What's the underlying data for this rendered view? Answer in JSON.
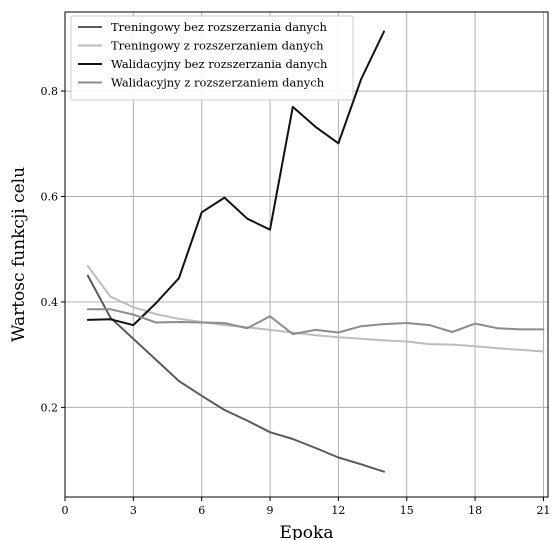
{
  "chart_data": {
    "type": "line",
    "xlabel": "Epoka",
    "ylabel": "Wartosc funkcji celu",
    "xlim": [
      0,
      21.2
    ],
    "ylim": [
      0.03,
      0.95
    ],
    "xticks": [
      0,
      3,
      6,
      9,
      12,
      15,
      18,
      21
    ],
    "yticks": [
      0.2,
      0.4,
      0.6,
      0.8
    ],
    "ytick_labels": [
      "0.2",
      "0.4",
      "0.6",
      "0.8"
    ],
    "grid": true,
    "legend_position": "top-left",
    "series": [
      {
        "name": "Treningowy bez rozszerzania danych",
        "color": "#5a5a5a",
        "x": [
          1,
          2,
          3,
          4,
          5,
          6,
          7,
          8,
          9,
          10,
          11,
          12,
          13,
          14
        ],
        "y": [
          0.45,
          0.37,
          0.33,
          0.29,
          0.25,
          0.222,
          0.195,
          0.175,
          0.153,
          0.14,
          0.123,
          0.105,
          0.092,
          0.078
        ]
      },
      {
        "name": "Treningowy z rozszerzaniem danych",
        "color": "#bdbdbd",
        "x": [
          1,
          2,
          3,
          4,
          5,
          6,
          7,
          8,
          9,
          10,
          11,
          12,
          13,
          14,
          15,
          16,
          17,
          18,
          19,
          20,
          21
        ],
        "y": [
          0.468,
          0.41,
          0.39,
          0.377,
          0.368,
          0.362,
          0.356,
          0.352,
          0.347,
          0.342,
          0.337,
          0.333,
          0.33,
          0.327,
          0.325,
          0.32,
          0.319,
          0.316,
          0.312,
          0.309,
          0.306
        ]
      },
      {
        "name": "Walidacyjny bez rozszerzania danych",
        "color": "#111111",
        "x": [
          1,
          2,
          3,
          4,
          5,
          6,
          7,
          8,
          9,
          10,
          11,
          12,
          13,
          14
        ],
        "y": [
          0.366,
          0.367,
          0.356,
          0.398,
          0.445,
          0.57,
          0.598,
          0.558,
          0.537,
          0.77,
          0.732,
          0.701,
          0.823,
          0.913
        ]
      },
      {
        "name": "Walidacyjny z rozszerzaniem danych",
        "color": "#8c8c8c",
        "x": [
          1,
          2,
          3,
          4,
          5,
          6,
          7,
          8,
          9,
          10,
          11,
          12,
          13,
          14,
          15,
          16,
          17,
          18,
          19,
          20,
          21
        ],
        "y": [
          0.386,
          0.386,
          0.376,
          0.361,
          0.362,
          0.361,
          0.36,
          0.35,
          0.373,
          0.339,
          0.347,
          0.342,
          0.354,
          0.358,
          0.36,
          0.356,
          0.343,
          0.359,
          0.35,
          0.348,
          0.348
        ]
      }
    ]
  }
}
